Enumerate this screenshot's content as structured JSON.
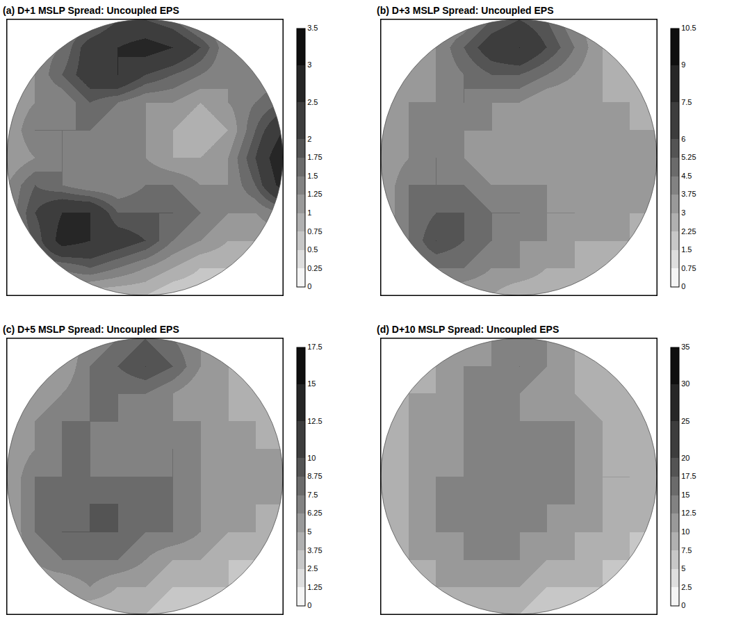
{
  "chart_data": [
    {
      "type": "heatmap",
      "title": "(a) D+1 MSLP Spread: Uncoupled EPS",
      "tick_labels": false,
      "zlim": [
        0,
        3.5
      ],
      "zticks": [
        0,
        0.25,
        0.5,
        0.75,
        1,
        1.25,
        1.5,
        1.75,
        2,
        2.5,
        3,
        3.5
      ],
      "cells": [
        [
          null,
          null,
          null,
          1.5,
          2,
          2,
          1.75,
          1.25,
          null,
          null,
          null
        ],
        [
          null,
          null,
          1.5,
          2.25,
          2.5,
          2.75,
          2.5,
          2,
          1.25,
          null,
          null
        ],
        [
          null,
          1.25,
          1.75,
          2.25,
          2.5,
          2,
          1.75,
          1.5,
          1.25,
          1.25,
          null
        ],
        [
          1,
          1.25,
          1.25,
          1.75,
          1.5,
          1.25,
          1.25,
          1,
          1.25,
          1.5,
          1.75
        ],
        [
          1,
          1.5,
          1.5,
          1.5,
          1.25,
          1.25,
          1,
          0.75,
          1,
          1.75,
          2.5
        ],
        [
          1,
          1.25,
          1.5,
          1.25,
          1.25,
          1.25,
          1,
          1,
          1.25,
          2,
          3
        ],
        [
          1.25,
          1.75,
          1.5,
          1.25,
          1.25,
          1.5,
          1.5,
          1.25,
          1.25,
          1.75,
          2.75
        ],
        [
          1.25,
          2,
          2.5,
          2.5,
          1.75,
          1.75,
          1.75,
          1.5,
          1.25,
          1.25,
          1.5
        ],
        [
          null,
          1.75,
          2.75,
          2.5,
          2.25,
          2,
          1.5,
          1.25,
          1,
          1,
          null
        ],
        [
          null,
          null,
          1.5,
          1.75,
          1.5,
          1.25,
          1,
          0.75,
          0.75,
          null,
          null
        ],
        [
          null,
          null,
          null,
          0.75,
          0.75,
          0.75,
          0.5,
          0.5,
          null,
          null,
          null
        ]
      ]
    },
    {
      "type": "heatmap",
      "title": "(b) D+3 MSLP Spread: Uncoupled EPS",
      "tick_labels": false,
      "zlim": [
        0,
        10.5
      ],
      "zticks": [
        0,
        0.75,
        1.5,
        2.25,
        3,
        3.75,
        4.5,
        5.25,
        6,
        7.5,
        9,
        10.5
      ],
      "cells": [
        [
          null,
          null,
          null,
          3.75,
          5.25,
          6,
          5.25,
          3.75,
          null,
          null,
          null
        ],
        [
          null,
          null,
          3.75,
          5.25,
          6.75,
          7.5,
          6,
          4.5,
          3,
          null,
          null
        ],
        [
          null,
          3,
          3.75,
          4.5,
          5.25,
          5.25,
          4.5,
          3.75,
          3,
          2.25,
          null
        ],
        [
          3,
          3.75,
          3.75,
          4.5,
          3.75,
          3.75,
          3,
          3,
          3,
          3,
          2.25
        ],
        [
          3,
          3.75,
          3.75,
          3.75,
          3.75,
          3,
          3,
          3,
          3,
          3,
          3
        ],
        [
          3,
          3.75,
          4.5,
          3.75,
          3,
          3,
          3,
          3,
          3,
          3,
          3.75
        ],
        [
          3,
          4.5,
          4.5,
          4.5,
          3.75,
          3.75,
          3.75,
          3,
          3,
          3,
          3.75
        ],
        [
          3,
          4.5,
          5.25,
          5.25,
          4.5,
          4.5,
          3.75,
          3.75,
          3,
          3,
          3
        ],
        [
          null,
          4.5,
          6,
          5.25,
          4.5,
          3.75,
          3.75,
          3,
          3,
          3,
          null
        ],
        [
          null,
          null,
          4.5,
          4.5,
          3.75,
          3.75,
          3,
          3,
          2.25,
          null,
          null
        ],
        [
          null,
          null,
          null,
          3,
          3,
          2.25,
          2.25,
          2.25,
          null,
          null,
          null
        ]
      ]
    },
    {
      "type": "heatmap",
      "title": "(c) D+5 MSLP Spread: Uncoupled EPS",
      "tick_labels": false,
      "zlim": [
        0,
        17.5
      ],
      "zticks": [
        0,
        1.25,
        2.5,
        3.75,
        5,
        6.25,
        7.5,
        8.75,
        10,
        12.5,
        15,
        17.5
      ],
      "cells": [
        [
          null,
          null,
          null,
          6.25,
          7.5,
          8.75,
          7.5,
          6.25,
          null,
          null,
          null
        ],
        [
          null,
          null,
          5,
          7.5,
          8.75,
          10,
          8.75,
          6.25,
          5,
          null,
          null
        ],
        [
          null,
          5,
          6.25,
          7.5,
          7.5,
          7.5,
          6.25,
          5,
          5,
          3.75,
          null
        ],
        [
          5,
          6.25,
          7.5,
          7.5,
          7.5,
          6.25,
          6.25,
          6.25,
          5,
          5,
          3.75
        ],
        [
          5,
          6.25,
          7.5,
          7.5,
          6.25,
          6.25,
          7.5,
          6.25,
          5,
          5,
          5
        ],
        [
          5,
          7.5,
          7.5,
          7.5,
          7.5,
          7.5,
          7.5,
          6.25,
          5,
          5,
          5
        ],
        [
          5,
          7.5,
          7.5,
          8.75,
          8.75,
          7.5,
          7.5,
          6.25,
          5,
          5,
          5
        ],
        [
          5,
          7.5,
          8.75,
          8.75,
          8.75,
          7.5,
          7.5,
          6.25,
          5,
          5,
          3.75
        ],
        [
          null,
          6.25,
          7.5,
          7.5,
          7.5,
          6.25,
          5,
          5,
          3.75,
          3.75,
          null
        ],
        [
          null,
          null,
          5,
          6.25,
          5,
          5,
          3.75,
          3.75,
          3.75,
          null,
          null
        ],
        [
          null,
          null,
          null,
          3.75,
          3.75,
          3.75,
          2.5,
          2.5,
          null,
          null,
          null
        ]
      ]
    },
    {
      "type": "heatmap",
      "title": "(d) D+10 MSLP Spread: Uncoupled EPS",
      "tick_labels": false,
      "zlim": [
        0,
        35
      ],
      "zticks": [
        0,
        2.5,
        5,
        7.5,
        10,
        12.5,
        15,
        17.5,
        20,
        25,
        30,
        35
      ],
      "cells": [
        [
          null,
          null,
          null,
          10,
          12.5,
          12.5,
          12.5,
          10,
          null,
          null,
          null
        ],
        [
          null,
          null,
          10,
          12.5,
          12.5,
          15,
          12.5,
          10,
          7.5,
          null,
          null
        ],
        [
          null,
          10,
          10,
          12.5,
          12.5,
          12.5,
          10,
          10,
          7.5,
          7.5,
          null
        ],
        [
          7.5,
          10,
          10,
          12.5,
          12.5,
          12.5,
          12.5,
          12.5,
          10,
          7.5,
          7.5
        ],
        [
          7.5,
          10,
          10,
          12.5,
          12.5,
          12.5,
          12.5,
          12.5,
          10,
          7.5,
          7.5
        ],
        [
          7.5,
          10,
          12.5,
          12.5,
          12.5,
          12.5,
          12.5,
          12.5,
          10,
          10,
          7.5
        ],
        [
          7.5,
          10,
          12.5,
          12.5,
          12.5,
          12.5,
          12.5,
          12.5,
          10,
          7.5,
          7.5
        ],
        [
          7.5,
          10,
          12.5,
          12.5,
          12.5,
          12.5,
          12.5,
          10,
          10,
          7.5,
          7.5
        ],
        [
          null,
          10,
          10,
          12.5,
          12.5,
          12.5,
          10,
          10,
          7.5,
          7.5,
          null
        ],
        [
          null,
          null,
          10,
          10,
          10,
          10,
          7.5,
          7.5,
          7.5,
          null,
          null
        ],
        [
          null,
          null,
          null,
          7.5,
          7.5,
          7.5,
          5,
          5,
          null,
          null,
          null
        ]
      ]
    }
  ]
}
